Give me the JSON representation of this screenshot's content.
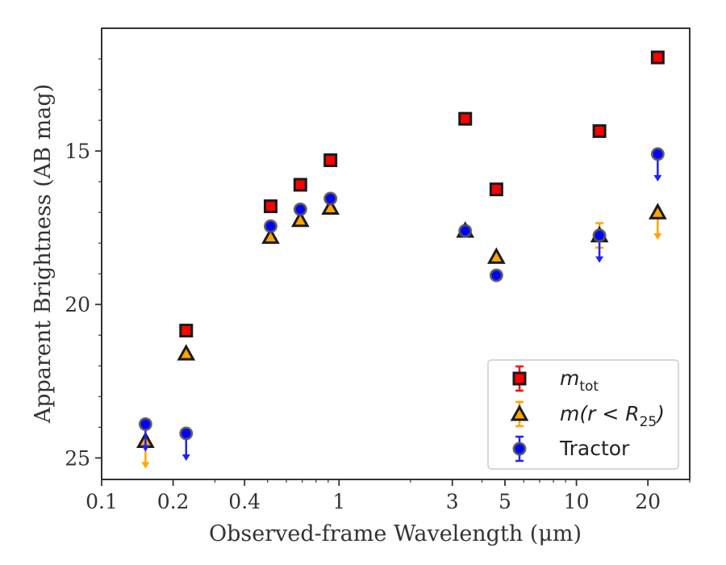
{
  "chart_data": {
    "type": "scatter",
    "xlabel": "Observed-frame Wavelength (μm)",
    "ylabel": "Apparent Brightness (AB mag)",
    "xscale": "log",
    "xlim": [
      0.1,
      30
    ],
    "ylim": [
      25.7,
      11.0
    ],
    "y_inverted": true,
    "x_major_ticks": [
      0.1,
      0.2,
      0.4,
      1,
      3,
      5,
      10,
      20
    ],
    "x_major_tick_labels": [
      "0.1",
      "0.2",
      "0.4",
      "1",
      "3",
      "5",
      "10",
      "20"
    ],
    "y_major_ticks": [
      15,
      20,
      25
    ],
    "y_major_tick_labels": [
      "15",
      "20",
      "25"
    ],
    "grid": false,
    "legend_position": "lower-right",
    "series": [
      {
        "name": "m_tot",
        "legend_label": {
          "main": "m",
          "sub": "tot"
        },
        "marker": "square",
        "color": "#ff0000",
        "edgecolor": "#1a1a1a",
        "points": [
          {
            "x": 0.227,
            "y": 20.85
          },
          {
            "x": 0.515,
            "y": 16.8
          },
          {
            "x": 0.687,
            "y": 16.1
          },
          {
            "x": 0.92,
            "y": 15.3
          },
          {
            "x": 3.4,
            "y": 13.95
          },
          {
            "x": 4.6,
            "y": 16.25
          },
          {
            "x": 12.5,
            "y": 14.35
          },
          {
            "x": 22.0,
            "y": 11.95
          }
        ]
      },
      {
        "name": "m(r < R_25)",
        "legend_label": {
          "main": "m(r < R",
          "sub": "25",
          "tail": ")"
        },
        "marker": "triangle",
        "color": "#ffa500",
        "edgecolor": "#1a1a1a",
        "points": [
          {
            "x": 0.153,
            "y": 24.45,
            "upper_limit": true
          },
          {
            "x": 0.227,
            "y": 21.6
          },
          {
            "x": 0.515,
            "y": 17.8
          },
          {
            "x": 0.687,
            "y": 17.25
          },
          {
            "x": 0.92,
            "y": 16.85
          },
          {
            "x": 3.4,
            "y": 17.6
          },
          {
            "x": 4.6,
            "y": 18.45
          },
          {
            "x": 12.5,
            "y": 17.75,
            "err": 0.4
          },
          {
            "x": 22.0,
            "y": 17.0,
            "upper_limit": true
          }
        ]
      },
      {
        "name": "Tractor",
        "legend_label": {
          "main": "Tractor"
        },
        "marker": "circle",
        "color": "#0000ff",
        "edgecolor": "#555555",
        "points": [
          {
            "x": 0.153,
            "y": 23.9,
            "upper_limit": true
          },
          {
            "x": 0.227,
            "y": 24.2,
            "upper_limit": true
          },
          {
            "x": 0.515,
            "y": 17.45
          },
          {
            "x": 0.687,
            "y": 16.9
          },
          {
            "x": 0.92,
            "y": 16.55
          },
          {
            "x": 3.4,
            "y": 17.6
          },
          {
            "x": 4.6,
            "y": 19.05
          },
          {
            "x": 12.5,
            "y": 17.75,
            "upper_limit": true
          },
          {
            "x": 22.0,
            "y": 15.1,
            "upper_limit": true
          }
        ]
      }
    ]
  }
}
